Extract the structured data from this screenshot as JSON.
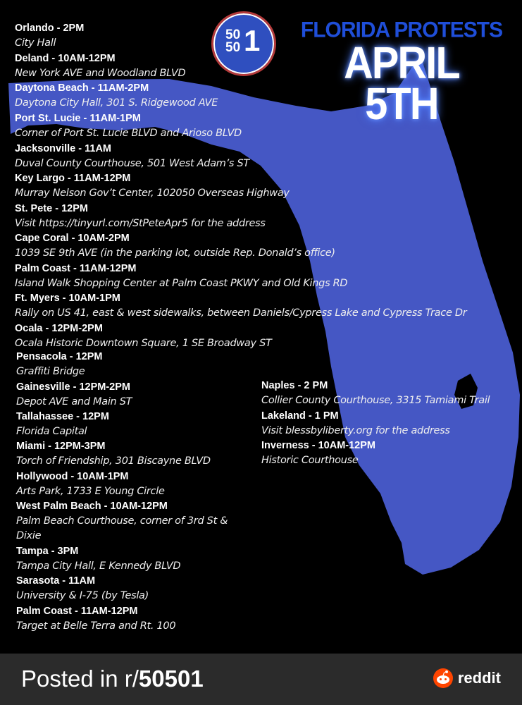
{
  "poster": {
    "logo_text": "50501",
    "heading": "FLORIDA PROTESTS",
    "date_line1": "APRIL",
    "date_line2": "5TH",
    "colors": {
      "map_blue": "#4557c4",
      "heading_blue": "#1f4ed8",
      "background": "#000000"
    },
    "events_left": [
      {
        "title": "Orlando - 2PM",
        "location": "City Hall"
      },
      {
        "title": "Deland - 10AM-12PM",
        "location": "New York AVE and Woodland BLVD"
      },
      {
        "title": "Daytona Beach - 11AM-2PM",
        "location": "Daytona City Hall, 301 S. Ridgewood AVE"
      },
      {
        "title": "Port St. Lucie - 11AM-1PM",
        "location": "Corner of Port St. Lucie BLVD and Arioso BLVD"
      },
      {
        "title": "Jacksonville - 11AM",
        "location": "Duval County Courthouse, 501 West Adam’s ST"
      },
      {
        "title": "Key Largo - 11AM-12PM",
        "location": "Murray Nelson Gov’t Center, 102050 Overseas Highway"
      },
      {
        "title": "St. Pete - 12PM",
        "location": "Visit https://tinyurl.com/StPeteApr5 for the address"
      },
      {
        "title": "Cape Coral - 10AM-2PM",
        "location": "1039 SE 9th AVE (in the parking lot, outside Rep. Donald’s office)"
      },
      {
        "title": "Palm Coast - 11AM-12PM",
        "location": "Island Walk Shopping Center at Palm Coast PKWY and Old Kings RD"
      },
      {
        "title": "Ft. Myers - 10AM-1PM",
        "location": "Rally on US 41, east & west sidewalks, between Daniels/Cypress Lake and Cypress Trace Dr"
      },
      {
        "title": "Ocala - 12PM-2PM",
        "location": "Ocala Historic Downtown Square, 1 SE Broadway ST"
      }
    ],
    "events_lower": [
      {
        "title": "Pensacola - 12PM",
        "location": "Graffiti Bridge"
      },
      {
        "title": "Gainesville - 12PM-2PM",
        "location": "Depot AVE and Main ST"
      },
      {
        "title": "Tallahassee - 12PM",
        "location": "Florida Capital"
      },
      {
        "title": "Miami - 12PM-3PM",
        "location": "Torch of Friendship, 301 Biscayne BLVD"
      },
      {
        "title": "Hollywood - 10AM-1PM",
        "location": "Arts Park, 1733 E Young Circle"
      },
      {
        "title": "West Palm Beach - 10AM-12PM",
        "location": "Palm Beach Courthouse, corner of 3rd St & Dixie"
      },
      {
        "title": "Tampa - 3PM",
        "location": "Tampa City Hall, E Kennedy BLVD"
      },
      {
        "title": "Sarasota - 11AM",
        "location": "University & I-75 (by Tesla)"
      },
      {
        "title": "Palm Coast - 11AM-12PM",
        "location": "Target at Belle Terra and Rt. 100"
      }
    ],
    "events_right": [
      {
        "title": "Naples - 2 PM",
        "location": "Collier County Courthouse, 3315 Tamiami Trail"
      },
      {
        "title": "Lakeland - 1 PM",
        "location": "Visit blessbyliberty.org for the address"
      },
      {
        "title": "Inverness - 10AM-12PM",
        "location": "Historic Courthouse"
      }
    ]
  },
  "footer": {
    "posted_prefix": "Posted in r/",
    "subreddit": "50501",
    "brand": "reddit",
    "brand_icon": "reddit-snoo-icon",
    "brand_color": "#ff4500"
  }
}
